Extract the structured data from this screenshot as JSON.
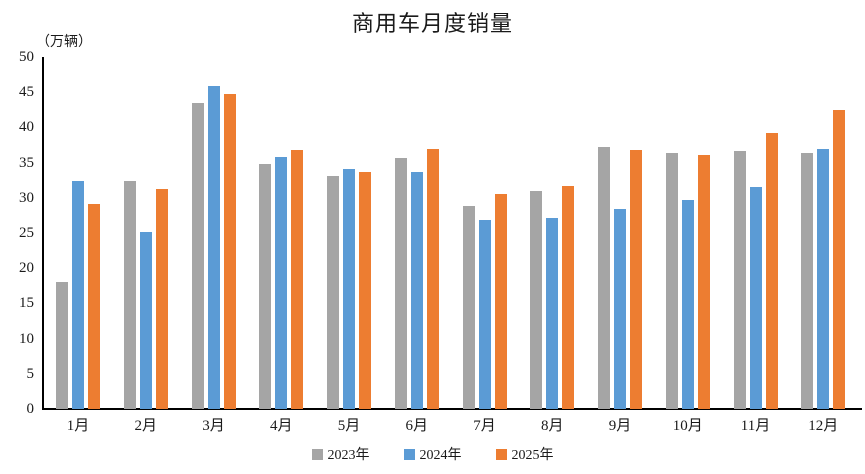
{
  "chart_data": {
    "type": "bar",
    "title": "商用车月度销量",
    "unit_label": "（万辆）",
    "categories": [
      "1月",
      "2月",
      "3月",
      "4月",
      "5月",
      "6月",
      "7月",
      "8月",
      "9月",
      "10月",
      "11月",
      "12月"
    ],
    "series": [
      {
        "name": "2023年",
        "color": "#A5A5A5",
        "values": [
          18.0,
          32.4,
          43.5,
          34.8,
          33.1,
          35.7,
          28.8,
          31.0,
          37.2,
          36.4,
          36.6,
          36.4
        ]
      },
      {
        "name": "2024年",
        "color": "#5B9BD5",
        "values": [
          32.4,
          25.1,
          45.9,
          35.8,
          34.1,
          33.7,
          26.8,
          27.2,
          28.4,
          29.7,
          31.6,
          37.0
        ]
      },
      {
        "name": "2025年",
        "color": "#ED7D31",
        "values": [
          29.1,
          31.3,
          44.8,
          36.8,
          33.6,
          36.9,
          30.6,
          31.7,
          36.8,
          36.1,
          39.2,
          42.5
        ]
      }
    ],
    "ylim": [
      0,
      50
    ],
    "yticks": [
      50,
      45,
      40,
      35,
      30,
      25,
      20,
      15,
      10,
      5,
      0
    ],
    "grid": false,
    "legend_position": "bottom",
    "axis_color": "#000000",
    "text_color": "#1a1a1a"
  }
}
